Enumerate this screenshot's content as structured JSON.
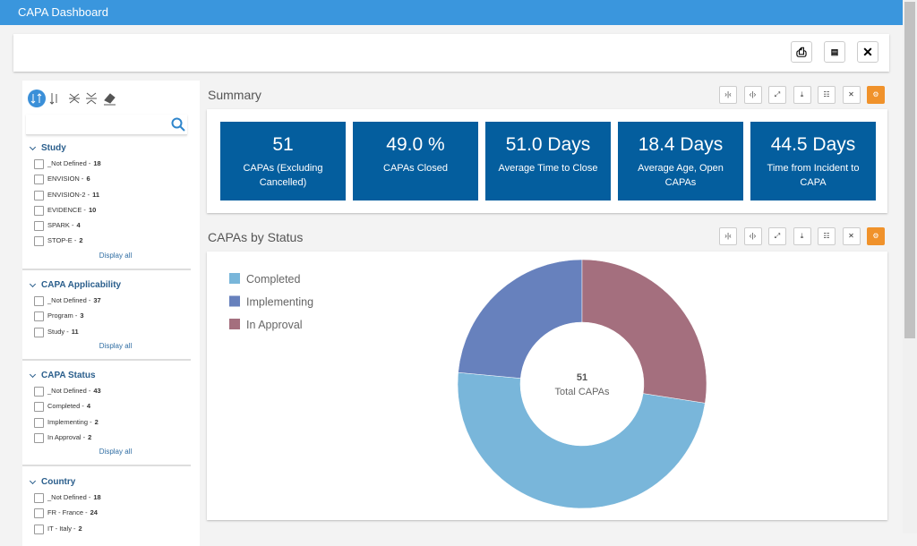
{
  "header": {
    "title": "CAPA Dashboard"
  },
  "filters": [
    {
      "title": "Study",
      "items": [
        {
          "label": "_Not Defined -",
          "count": 18
        },
        {
          "label": "ENVISION -",
          "count": 6
        },
        {
          "label": "ENVISION-2 -",
          "count": 11
        },
        {
          "label": "EVIDENCE -",
          "count": 10
        },
        {
          "label": "SPARK -",
          "count": 4
        },
        {
          "label": "STOP-E -",
          "count": 2
        }
      ],
      "more": "Display all"
    },
    {
      "title": "CAPA Applicability",
      "items": [
        {
          "label": "_Not Defined -",
          "count": 37
        },
        {
          "label": "Program -",
          "count": 3
        },
        {
          "label": "Study -",
          "count": 11
        }
      ],
      "more": "Display all"
    },
    {
      "title": "CAPA Status",
      "items": [
        {
          "label": "_Not Defined -",
          "count": 43
        },
        {
          "label": "Completed -",
          "count": 4
        },
        {
          "label": "Implementing -",
          "count": 2
        },
        {
          "label": "In Approval -",
          "count": 2
        }
      ],
      "more": "Display all"
    },
    {
      "title": "Country",
      "items": [
        {
          "label": "_Not Defined -",
          "count": 18
        },
        {
          "label": "FR - France -",
          "count": 24
        },
        {
          "label": "IT - Italy -",
          "count": 2
        }
      ]
    }
  ],
  "summary": {
    "title": "Summary",
    "tiles": [
      {
        "value": "51",
        "label": "CAPAs (Excluding Cancelled)"
      },
      {
        "value": "49.0 %",
        "label": "CAPAs Closed"
      },
      {
        "value": "51.0 Days",
        "label": "Average Time to Close"
      },
      {
        "value": "18.4 Days",
        "label": "Average Age, Open CAPAs"
      },
      {
        "value": "44.5 Days",
        "label": "Time from Incident to CAPA"
      }
    ]
  },
  "chart_data": {
    "type": "donut",
    "title": "CAPAs by Status",
    "center_value": 51,
    "center_label": "Total CAPAs",
    "categories": [
      "Completed",
      "Implementing",
      "In Approval"
    ],
    "values": [
      25,
      12,
      14
    ],
    "colors": [
      "#79b6da",
      "#6781bd",
      "#a46f7e"
    ],
    "legend": "top-left"
  }
}
